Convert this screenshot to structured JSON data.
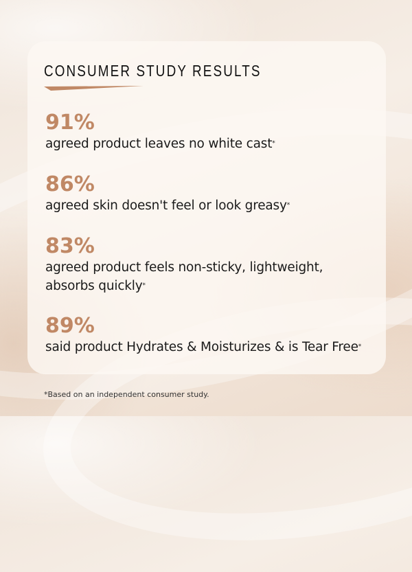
{
  "title": "CONSUMER STUDY RESULTS",
  "colors": {
    "accent": "#c08865",
    "text": "#1a1a1a"
  },
  "stats": [
    {
      "percent": "91%",
      "lines": [
        "agreed product leaves no white cast"
      ],
      "asterisk": "*"
    },
    {
      "percent": "86%",
      "lines": [
        "agreed skin doesn't feel or look greasy"
      ],
      "asterisk": "*"
    },
    {
      "percent": "83%",
      "lines": [
        "agreed product feels non-sticky, lightweight,",
        "absorbs quickly"
      ],
      "asterisk": "*"
    },
    {
      "percent": "89%",
      "lines": [
        "said product Hydrates & Moisturizes & is Tear Free"
      ],
      "asterisk": "*"
    }
  ],
  "footnote": "*Based on an independent consumer study."
}
